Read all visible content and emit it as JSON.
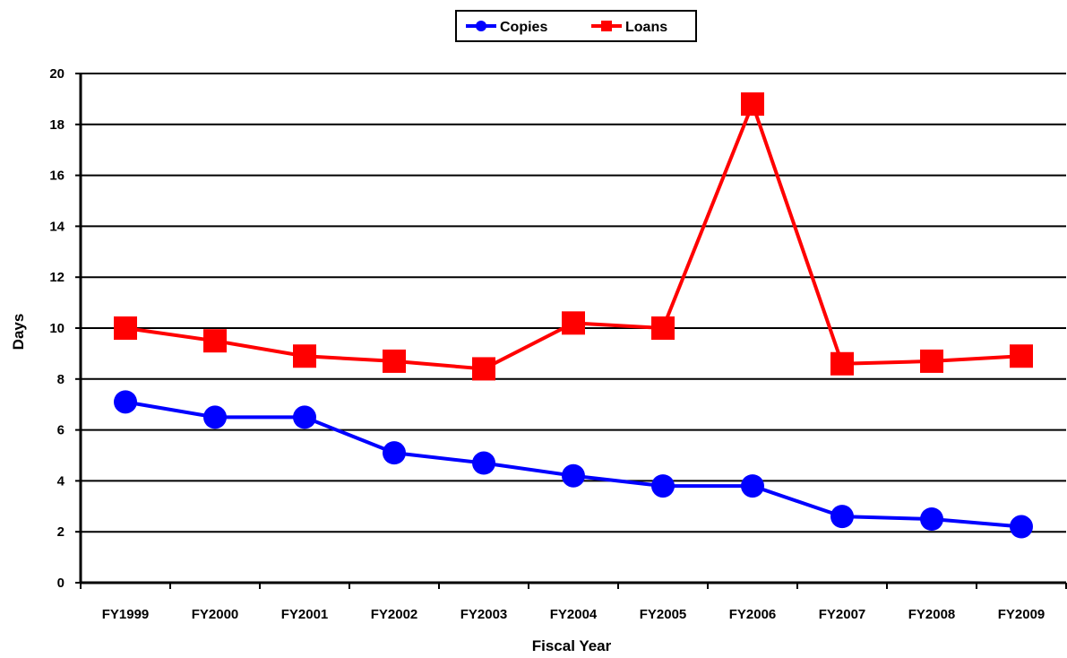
{
  "chart_data": {
    "type": "line",
    "xlabel": "Fiscal Year",
    "ylabel": "Days",
    "ylim": [
      0,
      20
    ],
    "yticks": [
      0,
      2,
      4,
      6,
      8,
      10,
      12,
      14,
      16,
      18,
      20
    ],
    "grid": true,
    "legend_position": "top-center",
    "categories": [
      "FY1999",
      "FY2000",
      "FY2001",
      "FY2002",
      "FY2003",
      "FY2004",
      "FY2005",
      "FY2006",
      "FY2007",
      "FY2008",
      "FY2009"
    ],
    "series": [
      {
        "name": "Copies",
        "color": "#0000ff",
        "marker": "circle",
        "values": [
          7.1,
          6.5,
          6.5,
          5.1,
          4.7,
          4.2,
          3.8,
          3.8,
          2.6,
          2.5,
          2.2
        ]
      },
      {
        "name": "Loans",
        "color": "#ff0000",
        "marker": "square",
        "values": [
          10.0,
          9.5,
          8.9,
          8.7,
          8.4,
          10.2,
          10.0,
          18.8,
          8.6,
          8.7,
          8.9
        ]
      }
    ]
  }
}
